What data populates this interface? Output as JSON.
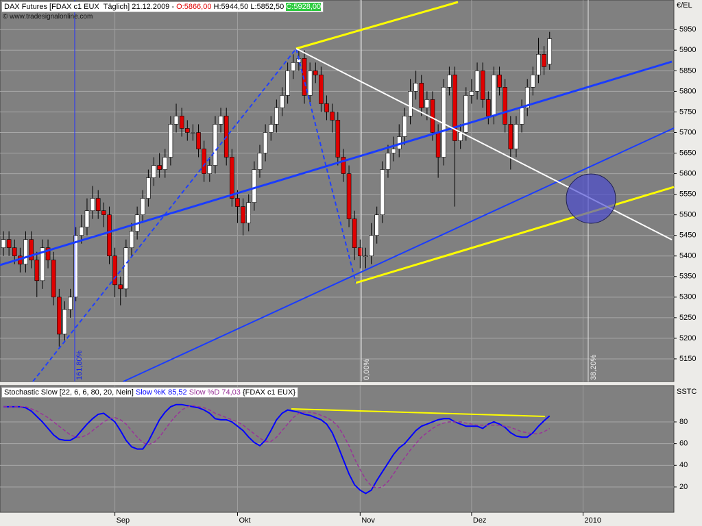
{
  "chart_data": [
    {
      "type": "candlestick",
      "title": "DAX Futures [FDAX c1 EUX  Täglich] 21.12.2009 -",
      "ohlc_labels": [
        "O:5866,00",
        "H:5944,50",
        "L:5852,50",
        "C:5928,00"
      ],
      "source": "© www.tradesignalonline.com",
      "y_axis_label": "€/EL",
      "annotations": [
        "161,80%",
        "0,00%",
        "38,20%"
      ],
      "up_color": "#ffffff",
      "down_color": "#e00000",
      "ylim": [
        5095,
        6022
      ],
      "yticks": [
        5150,
        5200,
        5250,
        5300,
        5350,
        5400,
        5450,
        5500,
        5550,
        5600,
        5650,
        5700,
        5750,
        5800,
        5850,
        5900,
        5950
      ],
      "grid": true,
      "open": [
        5420,
        5440,
        5420,
        5400,
        5380,
        5440,
        5390,
        5340,
        5420,
        5390,
        5300,
        5210,
        5270,
        5300,
        5450,
        5470,
        5510,
        5540,
        5510,
        5500,
        5400,
        5330,
        5320,
        5420,
        5460,
        5500,
        5540,
        5590,
        5620,
        5610,
        5640,
        5720,
        5740,
        5710,
        5700,
        5700,
        5660,
        5600,
        5620,
        5720,
        5740,
        5640,
        5540,
        5520,
        5480,
        5530,
        5610,
        5650,
        5700,
        5720,
        5760,
        5790,
        5850,
        5870,
        5880,
        5790,
        5850,
        5840,
        5770,
        5750,
        5730,
        5640,
        5600,
        5490,
        5420,
        5400,
        5400,
        5450,
        5500,
        5610,
        5650,
        5660,
        5690,
        5740,
        5800,
        5820,
        5760,
        5780,
        5700,
        5640,
        5810,
        5840,
        5680,
        5700,
        5790,
        5800,
        5850,
        5780,
        5740,
        5840,
        5810,
        5720,
        5660,
        5720,
        5760,
        5810,
        5840,
        5890,
        5866
      ],
      "high": [
        5460,
        5460,
        5440,
        5420,
        5460,
        5460,
        5410,
        5440,
        5440,
        5410,
        5320,
        5290,
        5320,
        5470,
        5500,
        5540,
        5570,
        5560,
        5530,
        5520,
        5420,
        5350,
        5440,
        5480,
        5520,
        5560,
        5610,
        5640,
        5650,
        5660,
        5740,
        5770,
        5760,
        5730,
        5720,
        5720,
        5680,
        5640,
        5740,
        5760,
        5760,
        5660,
        5560,
        5540,
        5550,
        5630,
        5670,
        5720,
        5740,
        5780,
        5810,
        5870,
        5890,
        5900,
        5900,
        5870,
        5870,
        5860,
        5790,
        5770,
        5750,
        5660,
        5620,
        5510,
        5440,
        5420,
        5480,
        5520,
        5630,
        5670,
        5690,
        5720,
        5760,
        5830,
        5850,
        5840,
        5800,
        5800,
        5720,
        5830,
        5860,
        5860,
        5720,
        5810,
        5830,
        5870,
        5870,
        5800,
        5860,
        5860,
        5830,
        5740,
        5740,
        5780,
        5830,
        5860,
        5930,
        5910,
        5944.5
      ],
      "low": [
        5400,
        5400,
        5380,
        5360,
        5360,
        5370,
        5300,
        5320,
        5370,
        5280,
        5180,
        5190,
        5250,
        5290,
        5430,
        5450,
        5490,
        5490,
        5470,
        5380,
        5300,
        5280,
        5300,
        5400,
        5440,
        5480,
        5520,
        5570,
        5590,
        5590,
        5620,
        5700,
        5690,
        5680,
        5680,
        5640,
        5580,
        5580,
        5600,
        5700,
        5620,
        5520,
        5480,
        5450,
        5460,
        5510,
        5590,
        5630,
        5680,
        5700,
        5740,
        5770,
        5830,
        5850,
        5770,
        5770,
        5820,
        5750,
        5730,
        5700,
        5620,
        5580,
        5470,
        5390,
        5370,
        5370,
        5380,
        5430,
        5480,
        5590,
        5630,
        5640,
        5670,
        5720,
        5780,
        5740,
        5730,
        5680,
        5590,
        5620,
        5790,
        5520,
        5660,
        5680,
        5770,
        5780,
        5760,
        5720,
        5720,
        5790,
        5700,
        5610,
        5640,
        5700,
        5740,
        5790,
        5820,
        5840,
        5852.5
      ],
      "close": [
        5440,
        5420,
        5400,
        5380,
        5440,
        5390,
        5340,
        5420,
        5390,
        5300,
        5210,
        5270,
        5300,
        5450,
        5470,
        5510,
        5540,
        5510,
        5500,
        5400,
        5330,
        5320,
        5420,
        5460,
        5500,
        5540,
        5590,
        5620,
        5610,
        5640,
        5720,
        5740,
        5710,
        5700,
        5700,
        5660,
        5600,
        5620,
        5720,
        5740,
        5640,
        5540,
        5520,
        5480,
        5530,
        5610,
        5650,
        5700,
        5720,
        5760,
        5790,
        5850,
        5870,
        5880,
        5790,
        5850,
        5840,
        5770,
        5750,
        5730,
        5640,
        5600,
        5490,
        5420,
        5400,
        5400,
        5450,
        5500,
        5610,
        5650,
        5660,
        5690,
        5740,
        5800,
        5820,
        5760,
        5780,
        5700,
        5640,
        5810,
        5840,
        5680,
        5700,
        5790,
        5800,
        5850,
        5780,
        5740,
        5840,
        5810,
        5720,
        5660,
        5720,
        5760,
        5810,
        5840,
        5890,
        5860,
        5928
      ]
    },
    {
      "type": "line",
      "title": "Stochastic Slow [22, 6, 6, 80, 20, Nein]",
      "source_label": "{FDAX c1 EUX}",
      "y_axis_label": "SSTC",
      "ylim": [
        -3.4,
        113.5
      ],
      "yticks": [
        20,
        40,
        60,
        80
      ],
      "grid": true,
      "categories": [
        null,
        null,
        null,
        null,
        null,
        null,
        null,
        null,
        null,
        null,
        null,
        null,
        null,
        null,
        null,
        null,
        null,
        null,
        null,
        null,
        "Sep",
        null,
        null,
        null,
        null,
        null,
        null,
        null,
        null,
        null,
        null,
        null,
        null,
        null,
        null,
        null,
        null,
        null,
        null,
        null,
        null,
        null,
        "Okt",
        null,
        null,
        null,
        null,
        null,
        null,
        null,
        null,
        null,
        null,
        null,
        null,
        null,
        null,
        null,
        null,
        null,
        null,
        null,
        null,
        null,
        "Nov",
        null,
        null,
        null,
        null,
        null,
        null,
        null,
        null,
        null,
        null,
        null,
        null,
        null,
        null,
        null,
        null,
        null,
        null,
        null,
        "Dez",
        null,
        null,
        null,
        null,
        null,
        null,
        null,
        null,
        null,
        null,
        null,
        null,
        null,
        null,
        null,
        null,
        null,
        null,
        null,
        "2010",
        null,
        null,
        null,
        null,
        null,
        null,
        null,
        null,
        null,
        null,
        null,
        null,
        null,
        null,
        null,
        null
      ],
      "series": [
        {
          "name": "Slow %K",
          "last_label": "85,52",
          "color": "#0000ff",
          "dashed": false,
          "values": [
            94,
            94,
            94,
            94,
            93,
            90,
            85,
            80,
            74,
            68,
            64,
            63,
            63,
            66,
            72,
            78,
            83,
            87,
            88,
            84,
            80,
            72,
            63,
            57,
            55,
            55,
            62,
            72,
            82,
            89,
            94,
            96,
            96,
            95,
            94,
            93,
            91,
            88,
            83,
            82,
            82,
            80,
            76,
            72,
            66,
            61,
            58,
            63,
            72,
            82,
            88,
            91,
            90,
            89,
            87,
            86,
            84,
            82,
            78,
            70,
            58,
            45,
            32,
            22,
            17,
            14,
            17,
            26,
            34,
            42,
            50,
            56,
            60,
            66,
            72,
            76,
            78,
            80,
            82,
            83,
            83,
            80,
            78,
            76,
            76,
            76,
            74,
            78,
            80,
            78,
            75,
            70,
            67,
            66,
            66,
            70,
            76,
            81,
            85.52,
            null,
            null,
            null,
            null,
            null,
            null,
            null,
            null,
            null,
            null,
            null,
            null,
            null,
            null,
            null,
            null,
            null,
            null,
            null,
            null,
            null,
            null
          ]
        },
        {
          "name": "Slow %D",
          "last_label": "74,03",
          "color": "#993399",
          "dashed": true,
          "values": [
            94,
            94,
            94,
            94,
            94,
            92,
            90,
            87,
            84,
            80,
            76,
            72,
            68,
            66,
            66,
            68,
            72,
            76,
            80,
            83,
            84,
            82,
            78,
            72,
            66,
            61,
            59,
            61,
            66,
            73,
            80,
            86,
            91,
            94,
            95,
            94,
            93,
            91,
            88,
            86,
            84,
            82,
            80,
            77,
            73,
            69,
            65,
            62,
            62,
            66,
            72,
            78,
            84,
            88,
            89,
            89,
            88,
            86,
            84,
            81,
            76,
            68,
            58,
            46,
            36,
            27,
            21,
            19,
            20,
            25,
            32,
            40,
            47,
            54,
            60,
            66,
            70,
            74,
            77,
            79,
            80,
            80,
            80,
            79,
            78,
            77,
            77,
            77,
            77,
            77,
            76,
            75,
            73,
            71,
            70,
            69,
            69,
            71,
            74.03,
            null,
            null,
            null,
            null,
            null,
            null,
            null,
            null,
            null,
            null,
            null,
            null,
            null,
            null,
            null,
            null,
            null,
            null,
            null,
            null,
            null,
            null
          ]
        }
      ]
    }
  ]
}
